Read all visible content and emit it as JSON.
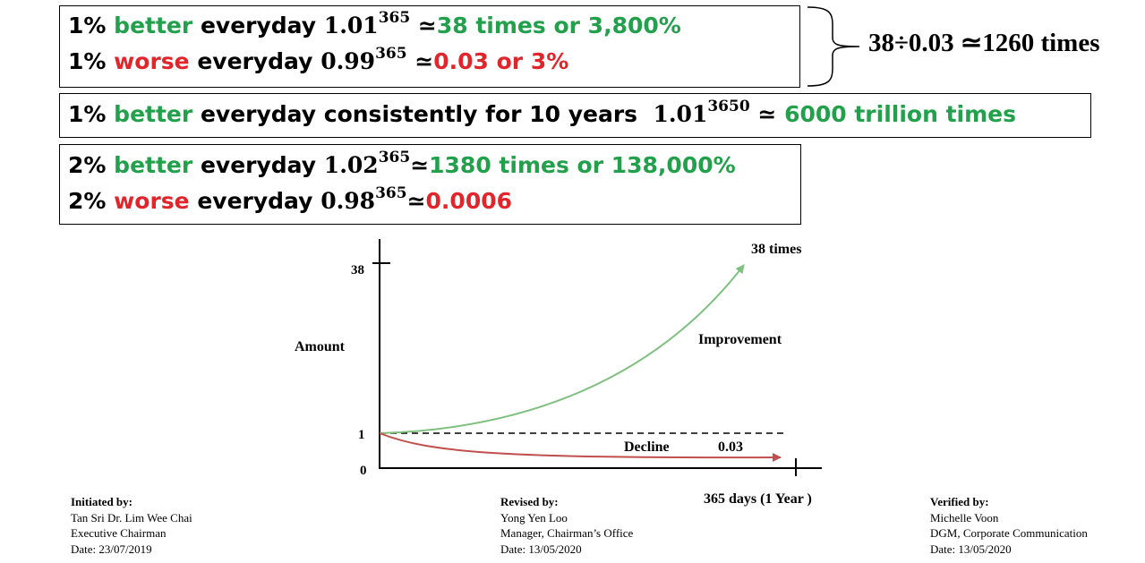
{
  "box1": {
    "line1": {
      "pct": "1%",
      "word": "better",
      "rest": "everyday",
      "base": "1.01",
      "exp": "365",
      "approx": "≃",
      "result": "38 times or 3,800%"
    },
    "line2": {
      "pct": "1%",
      "word": "worse",
      "rest": "everyday",
      "base": "0.99",
      "exp": "365",
      "approx": "≃",
      "result": "0.03 or 3%"
    }
  },
  "ratio_text": "38÷0.03 ≃1260 times",
  "box2": {
    "pct": "1%",
    "word": "better",
    "rest": "everyday consistently for 10 years",
    "base": "1.01",
    "exp": "3650",
    "approx": "≃",
    "result": "6000 trillion times"
  },
  "box3": {
    "line1": {
      "pct": "2%",
      "word": "better",
      "rest": "everyday",
      "base": "1.02",
      "exp": "365",
      "approx": "≃",
      "result": "1380 times or 138,000%"
    },
    "line2": {
      "pct": "2%",
      "word": "worse",
      "rest": "everyday",
      "base": "0.98",
      "exp": "365",
      "approx": "≃",
      "result": "0.0006"
    }
  },
  "chart": {
    "y_label": "Amount",
    "y_ticks": [
      "38",
      "1",
      "0"
    ],
    "x_label": "365 days (1 Year )",
    "improve_end_label": "38 times",
    "improve_label": "Improvement",
    "decline_label": "Decline",
    "decline_value": "0.03",
    "colors": {
      "improve": "#7fbf7f",
      "decline": "#c0504d"
    }
  },
  "signoffs": [
    {
      "heading": "Initiated by:",
      "name": "Tan Sri Dr. Lim Wee Chai",
      "title": "Executive Chairman",
      "date": "Date: 23/07/2019"
    },
    {
      "heading": "Revised by:",
      "name": "Yong Yen Loo",
      "title": "Manager, Chairman’s Office",
      "date": "Date: 13/05/2020"
    },
    {
      "heading": "Verified by:",
      "name": "Michelle Voon",
      "title": "DGM, Corporate Communication",
      "date": "Date: 13/05/2020"
    }
  ],
  "colors": {
    "green": "#22a04b",
    "red": "#e0262b"
  }
}
